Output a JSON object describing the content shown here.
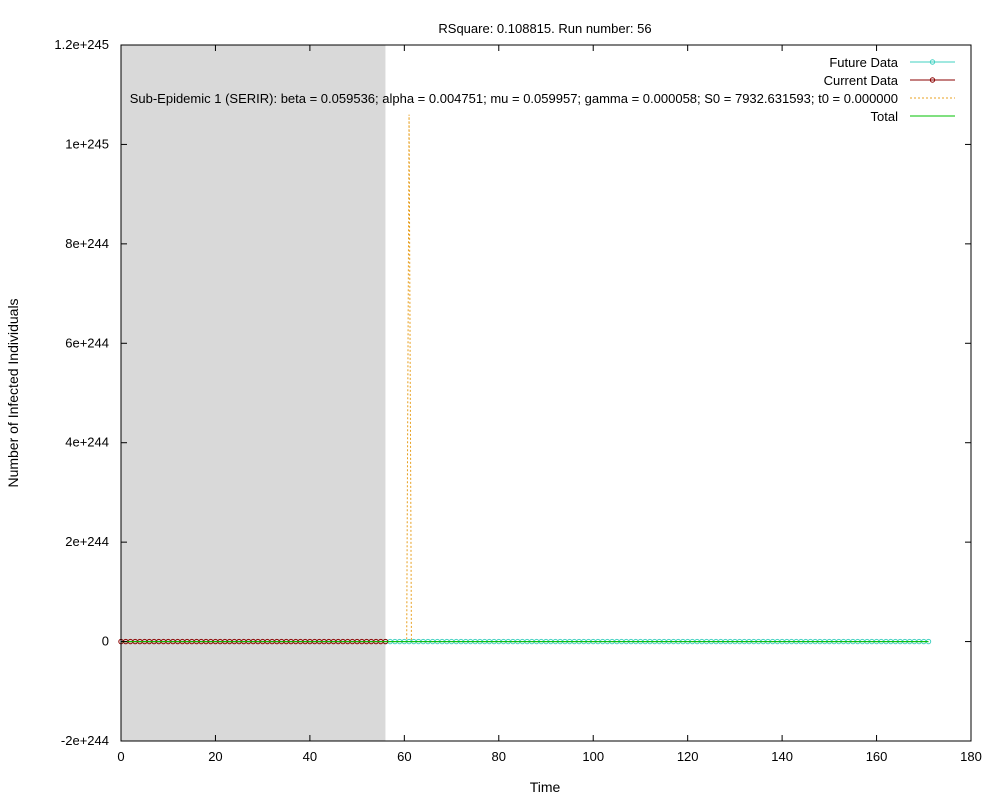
{
  "chart_data": {
    "type": "line",
    "title": "RSquare: 0.108815. Run number: 56",
    "xlabel": "Time",
    "ylabel": "Number of Infected Individuals",
    "xlim": [
      0,
      180
    ],
    "ylim": [
      -2e+244,
      1.2e+245
    ],
    "xticks": [
      0,
      20,
      40,
      60,
      80,
      100,
      120,
      140,
      160,
      180
    ],
    "xtick_labels": [
      "0",
      "20",
      "40",
      "60",
      "80",
      "100",
      "120",
      "140",
      "160",
      "180"
    ],
    "yticks": [
      -2e+244,
      0,
      2e+244,
      4e+244,
      6e+244,
      8e+244,
      1e+245,
      1.2e+245
    ],
    "ytick_labels": [
      "-2e+244",
      "0",
      "2e+244",
      "4e+244",
      "6e+244",
      "8e+244",
      "1e+245",
      "1.2e+245"
    ],
    "shaded_region": {
      "x_start": 0,
      "x_end": 56,
      "color": "#d9d9d9"
    },
    "grid": false,
    "legend_position": "top-right",
    "series": [
      {
        "name": "Future Data",
        "color": "#40d0c0",
        "style": "line-points",
        "x_start": 56,
        "x_end": 171,
        "x_step": 1,
        "y": 0
      },
      {
        "name": "Current Data",
        "color": "#8b0000",
        "style": "line-points",
        "x_start": 0,
        "x_end": 56,
        "x_step": 1,
        "y": 0
      },
      {
        "name": "Sub-Epidemic 1 (SERIR): beta = 0.059536; alpha = 0.004751; mu = 0.059957; gamma = 0.000058; S0 = 7932.631593; t0 = 0.000000",
        "color": "#e8a020",
        "style": "dotted",
        "points": [
          [
            0,
            0
          ],
          [
            60.5,
            0
          ],
          [
            61,
            1.06e+245
          ],
          [
            61.5,
            0
          ],
          [
            171,
            0
          ]
        ]
      },
      {
        "name": "Total",
        "color": "#00c000",
        "style": "line",
        "points": [
          [
            0,
            0
          ],
          [
            171,
            0
          ]
        ]
      }
    ]
  }
}
